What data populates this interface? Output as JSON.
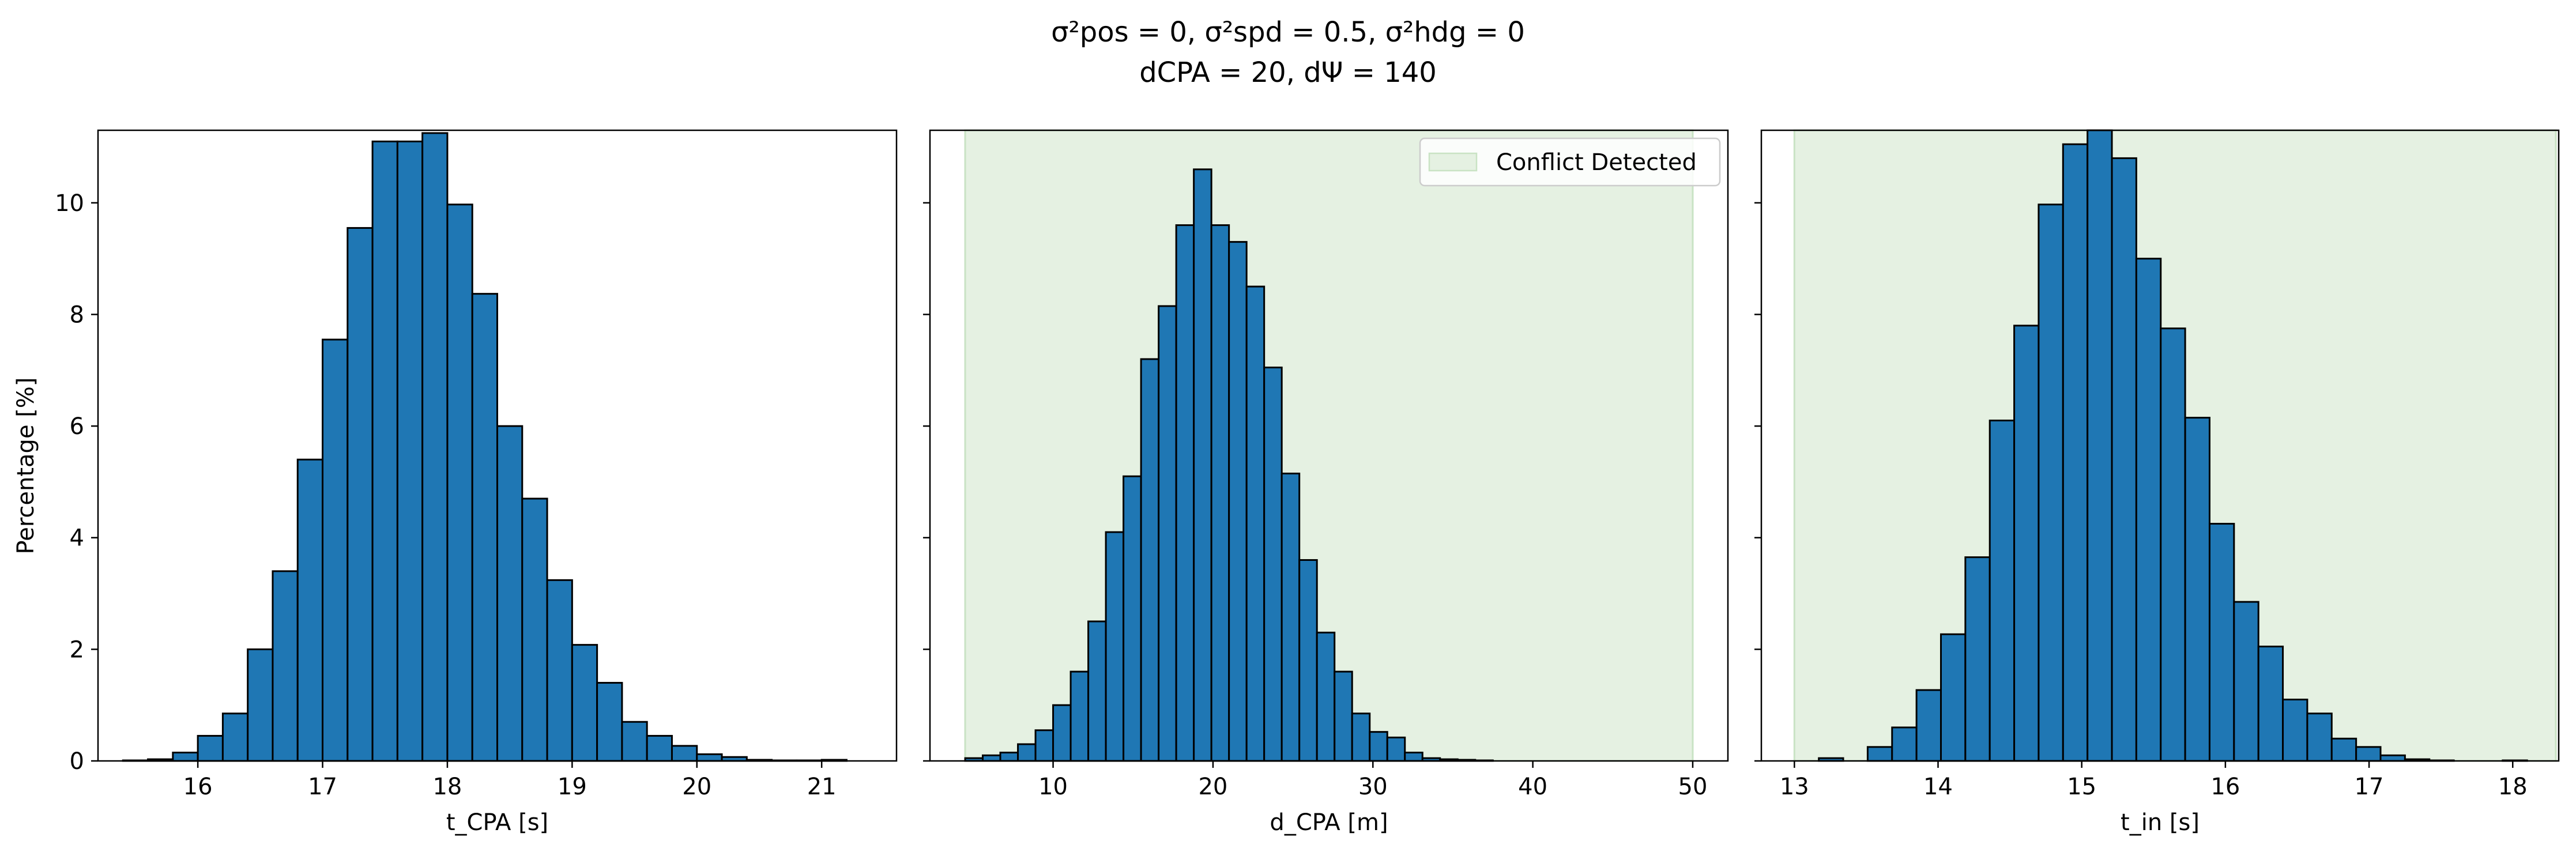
{
  "figure_title": {
    "line1": "σ²pos = 0, σ²spd = 0.5, σ²hdg = 0",
    "line2": "dCPA = 20, dΨ = 140"
  },
  "y_axis_label": "Percentage [%]",
  "colors": {
    "bar_fill": "#1f77b4",
    "bar_edge": "#000000",
    "conflict_fill": "#e5f1e2",
    "conflict_edge": "#c9e3c4"
  },
  "chart_data": [
    {
      "type": "bar",
      "id": "t_cpa",
      "xlabel": "t_CPA [s]",
      "xlim": [
        15.2,
        21.6
      ],
      "ylim": [
        0,
        11.3
      ],
      "xticks": [
        "16",
        "17",
        "18",
        "19",
        "20",
        "21"
      ],
      "yticks": [
        "0",
        "2",
        "4",
        "6",
        "8",
        "10"
      ],
      "bin_width": 0.2,
      "bin_starts": [
        15.4,
        15.6,
        15.8,
        16.0,
        16.2,
        16.4,
        16.6,
        16.8,
        17.0,
        17.2,
        17.4,
        17.6,
        17.8,
        18.0,
        18.2,
        18.4,
        18.6,
        18.8,
        19.0,
        19.2,
        19.4,
        19.6,
        19.8,
        20.0,
        20.2,
        20.4,
        20.6,
        20.8,
        21.0
      ],
      "values": [
        0.01,
        0.03,
        0.15,
        0.45,
        0.85,
        2.0,
        3.4,
        5.4,
        7.55,
        9.55,
        11.1,
        11.1,
        11.25,
        9.97,
        8.37,
        6.0,
        4.7,
        3.24,
        2.08,
        1.4,
        0.7,
        0.45,
        0.27,
        0.12,
        0.07,
        0.02,
        0.01,
        0.01,
        0.02
      ],
      "grid": false
    },
    {
      "type": "bar",
      "id": "d_cpa",
      "xlabel": "d_CPA [m]",
      "xlim": [
        2.3,
        52.2
      ],
      "ylim": [
        0,
        11.3
      ],
      "xticks": [
        "10",
        "20",
        "30",
        "40",
        "50"
      ],
      "yticks": [
        "0",
        "2",
        "4",
        "6",
        "8",
        "10"
      ],
      "bin_width": 1.1,
      "bin_starts": [
        4.5,
        5.6,
        6.7,
        7.8,
        8.9,
        10.0,
        11.1,
        12.2,
        13.3,
        14.4,
        15.5,
        16.6,
        17.7,
        18.8,
        19.9,
        21.0,
        22.1,
        23.2,
        24.3,
        25.4,
        26.5,
        27.6,
        28.7,
        29.8,
        30.9,
        32.0,
        33.1,
        34.2,
        35.3,
        36.4
      ],
      "values": [
        0.05,
        0.1,
        0.15,
        0.3,
        0.55,
        1.0,
        1.6,
        2.5,
        4.1,
        5.1,
        7.2,
        8.15,
        9.6,
        10.6,
        9.6,
        9.3,
        8.5,
        7.05,
        5.15,
        3.6,
        2.3,
        1.6,
        0.85,
        0.52,
        0.42,
        0.15,
        0.05,
        0.03,
        0.02,
        0.01
      ],
      "conflict_region": [
        4.5,
        50.0
      ],
      "legend": {
        "label": "Conflict Detected",
        "placement": "upper right"
      },
      "grid": false
    },
    {
      "type": "bar",
      "id": "t_in",
      "xlabel": "t_in [s]",
      "xlim": [
        12.77,
        18.32
      ],
      "ylim": [
        0,
        11.3
      ],
      "xticks": [
        "13",
        "14",
        "15",
        "16",
        "17",
        "18"
      ],
      "yticks": [
        "0",
        "2",
        "4",
        "6",
        "8",
        "10"
      ],
      "bin_width": 0.17,
      "bin_starts": [
        13.0,
        13.17,
        13.34,
        13.51,
        13.68,
        13.85,
        14.02,
        14.19,
        14.36,
        14.53,
        14.7,
        14.87,
        15.04,
        15.21,
        15.38,
        15.55,
        15.72,
        15.89,
        16.06,
        16.23,
        16.4,
        16.57,
        16.74,
        16.91,
        17.08,
        17.25,
        17.42,
        17.59,
        17.76,
        17.93
      ],
      "values": [
        0.0,
        0.05,
        0.0,
        0.25,
        0.6,
        1.27,
        2.27,
        3.65,
        6.1,
        7.8,
        9.97,
        11.05,
        11.3,
        10.8,
        9.0,
        7.75,
        6.15,
        4.25,
        2.85,
        2.05,
        1.1,
        0.85,
        0.4,
        0.25,
        0.1,
        0.03,
        0.01,
        0.0,
        0.0,
        0.01
      ],
      "conflict_region": [
        13.0,
        18.3
      ],
      "grid": false
    }
  ]
}
